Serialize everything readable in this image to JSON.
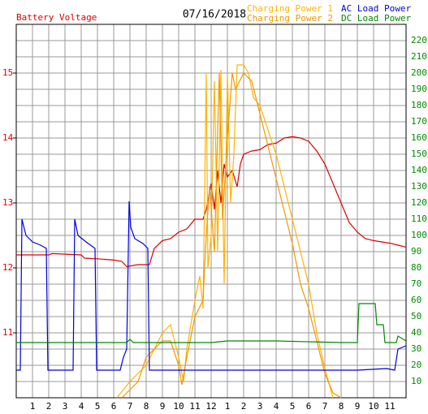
{
  "chart_data": {
    "type": "line",
    "title": "07/16/2018",
    "xlim": [
      0,
      24
    ],
    "xticks": [
      1,
      2,
      3,
      4,
      5,
      6,
      7,
      8,
      9,
      10,
      11,
      12,
      {
        "value": 13,
        "label": "1"
      },
      {
        "value": 14,
        "label": "2"
      },
      {
        "value": 15,
        "label": "3"
      },
      {
        "value": 16,
        "label": "4"
      },
      {
        "value": 17,
        "label": "5"
      },
      {
        "value": 18,
        "label": "6"
      },
      {
        "value": 19,
        "label": "7"
      },
      {
        "value": 20,
        "label": "8"
      },
      {
        "value": 21,
        "label": "9"
      },
      {
        "value": 22,
        "label": "10"
      },
      {
        "value": 23,
        "label": "11"
      }
    ],
    "ylim": [
      10,
      15.75
    ],
    "yticks": [
      11,
      12,
      13,
      14,
      15
    ],
    "y2lim": [
      0,
      230
    ],
    "y2ticks": [
      10,
      20,
      30,
      40,
      50,
      60,
      70,
      80,
      90,
      100,
      110,
      120,
      130,
      140,
      150,
      160,
      170,
      180,
      190,
      200,
      210,
      220
    ],
    "grid": true,
    "series": [
      {
        "name": "Battery Voltage",
        "color": "#dd0000",
        "axis": "y",
        "x": [
          0,
          2,
          2.2,
          4,
          4.2,
          5,
          6,
          6.5,
          6.8,
          7.5,
          8.2,
          8.5,
          9,
          9.5,
          10,
          10.5,
          11,
          11.5,
          11.7,
          12,
          12.2,
          12.4,
          12.6,
          12.8,
          13,
          13.3,
          13.6,
          13.8,
          14,
          14.5,
          15,
          15.5,
          16,
          16.5,
          17,
          17.5,
          18,
          18.5,
          19,
          19.5,
          20,
          20.5,
          21,
          21.5,
          22,
          23,
          23.5,
          24
        ],
        "values": [
          12.2,
          12.2,
          12.22,
          12.2,
          12.15,
          12.14,
          12.12,
          12.1,
          12.02,
          12.05,
          12.05,
          12.3,
          12.42,
          12.45,
          12.55,
          12.6,
          12.75,
          12.75,
          12.9,
          13.3,
          12.9,
          13.5,
          13.0,
          13.6,
          13.4,
          13.5,
          13.25,
          13.6,
          13.75,
          13.8,
          13.82,
          13.9,
          13.92,
          14.0,
          14.02,
          14.0,
          13.95,
          13.8,
          13.6,
          13.3,
          13.0,
          12.7,
          12.55,
          12.45,
          12.42,
          12.38,
          12.35,
          12.32
        ]
      },
      {
        "name": "Charging Power 1",
        "color": "#ffb400",
        "axis": "y2",
        "x": [
          6.2,
          7,
          8,
          8.5,
          9,
          9.5,
          10,
          10.3,
          10.5,
          11,
          11.3,
          11.5,
          11.7,
          11.8,
          12,
          12.2,
          12.4,
          12.6,
          12.8,
          13,
          13.2,
          13.4,
          13.6,
          14,
          14.3,
          14.6,
          15,
          16,
          17,
          17.5,
          18,
          18.5,
          19,
          19.5
        ],
        "values": [
          0,
          10,
          20,
          30,
          40,
          45,
          25,
          10,
          30,
          60,
          75,
          55,
          200,
          80,
          100,
          195,
          90,
          202,
          70,
          200,
          120,
          150,
          205,
          205,
          200,
          185,
          180,
          150,
          110,
          90,
          70,
          40,
          18,
          0
        ]
      },
      {
        "name": "Charging Power 2",
        "color": "#f09800",
        "axis": "y2",
        "x": [
          6.5,
          7.5,
          8,
          9,
          9.5,
          10,
          10.2,
          10.5,
          11,
          11.5,
          11.7,
          11.9,
          12.2,
          12.5,
          12.7,
          13,
          13.3,
          13.5,
          14,
          14.5,
          15,
          15.5,
          16,
          16.5,
          17,
          17.5,
          18,
          18.5,
          19,
          19.5,
          20
        ],
        "values": [
          0,
          10,
          25,
          35,
          35,
          20,
          8,
          25,
          50,
          60,
          100,
          130,
          90,
          200,
          110,
          160,
          200,
          190,
          200,
          195,
          175,
          155,
          135,
          115,
          95,
          70,
          55,
          35,
          15,
          3,
          0
        ]
      },
      {
        "name": "AC Load Power",
        "color": "#0000dd",
        "axis": "y2",
        "x": [
          0,
          0.25,
          0.35,
          0.6,
          1,
          1.5,
          1.85,
          1.95,
          3.5,
          3.6,
          3.8,
          4.3,
          4.85,
          4.95,
          6.4,
          6.6,
          6.8,
          6.95,
          7.05,
          7.3,
          7.8,
          8.1,
          8.2,
          12,
          15,
          18,
          21,
          22.8,
          23.3,
          23.5,
          24
        ],
        "values": [
          17,
          17,
          110,
          100,
          96,
          94,
          92,
          17,
          17,
          110,
          100,
          96,
          92,
          17,
          17,
          25,
          30,
          121,
          105,
          98,
          95,
          92,
          17,
          17,
          17,
          17,
          17,
          18,
          17,
          30,
          32
        ]
      },
      {
        "name": "DC Load Power",
        "color": "#008800",
        "axis": "y2",
        "x": [
          0,
          6.8,
          7,
          7.2,
          12,
          13,
          16,
          20,
          21,
          21.1,
          22.1,
          22.2,
          22.6,
          22.7,
          23.4,
          23.5,
          24
        ],
        "values": [
          34,
          34,
          36,
          34,
          34,
          35,
          35,
          34,
          34,
          58,
          58,
          45,
          45,
          34,
          34,
          38,
          35
        ]
      }
    ]
  }
}
